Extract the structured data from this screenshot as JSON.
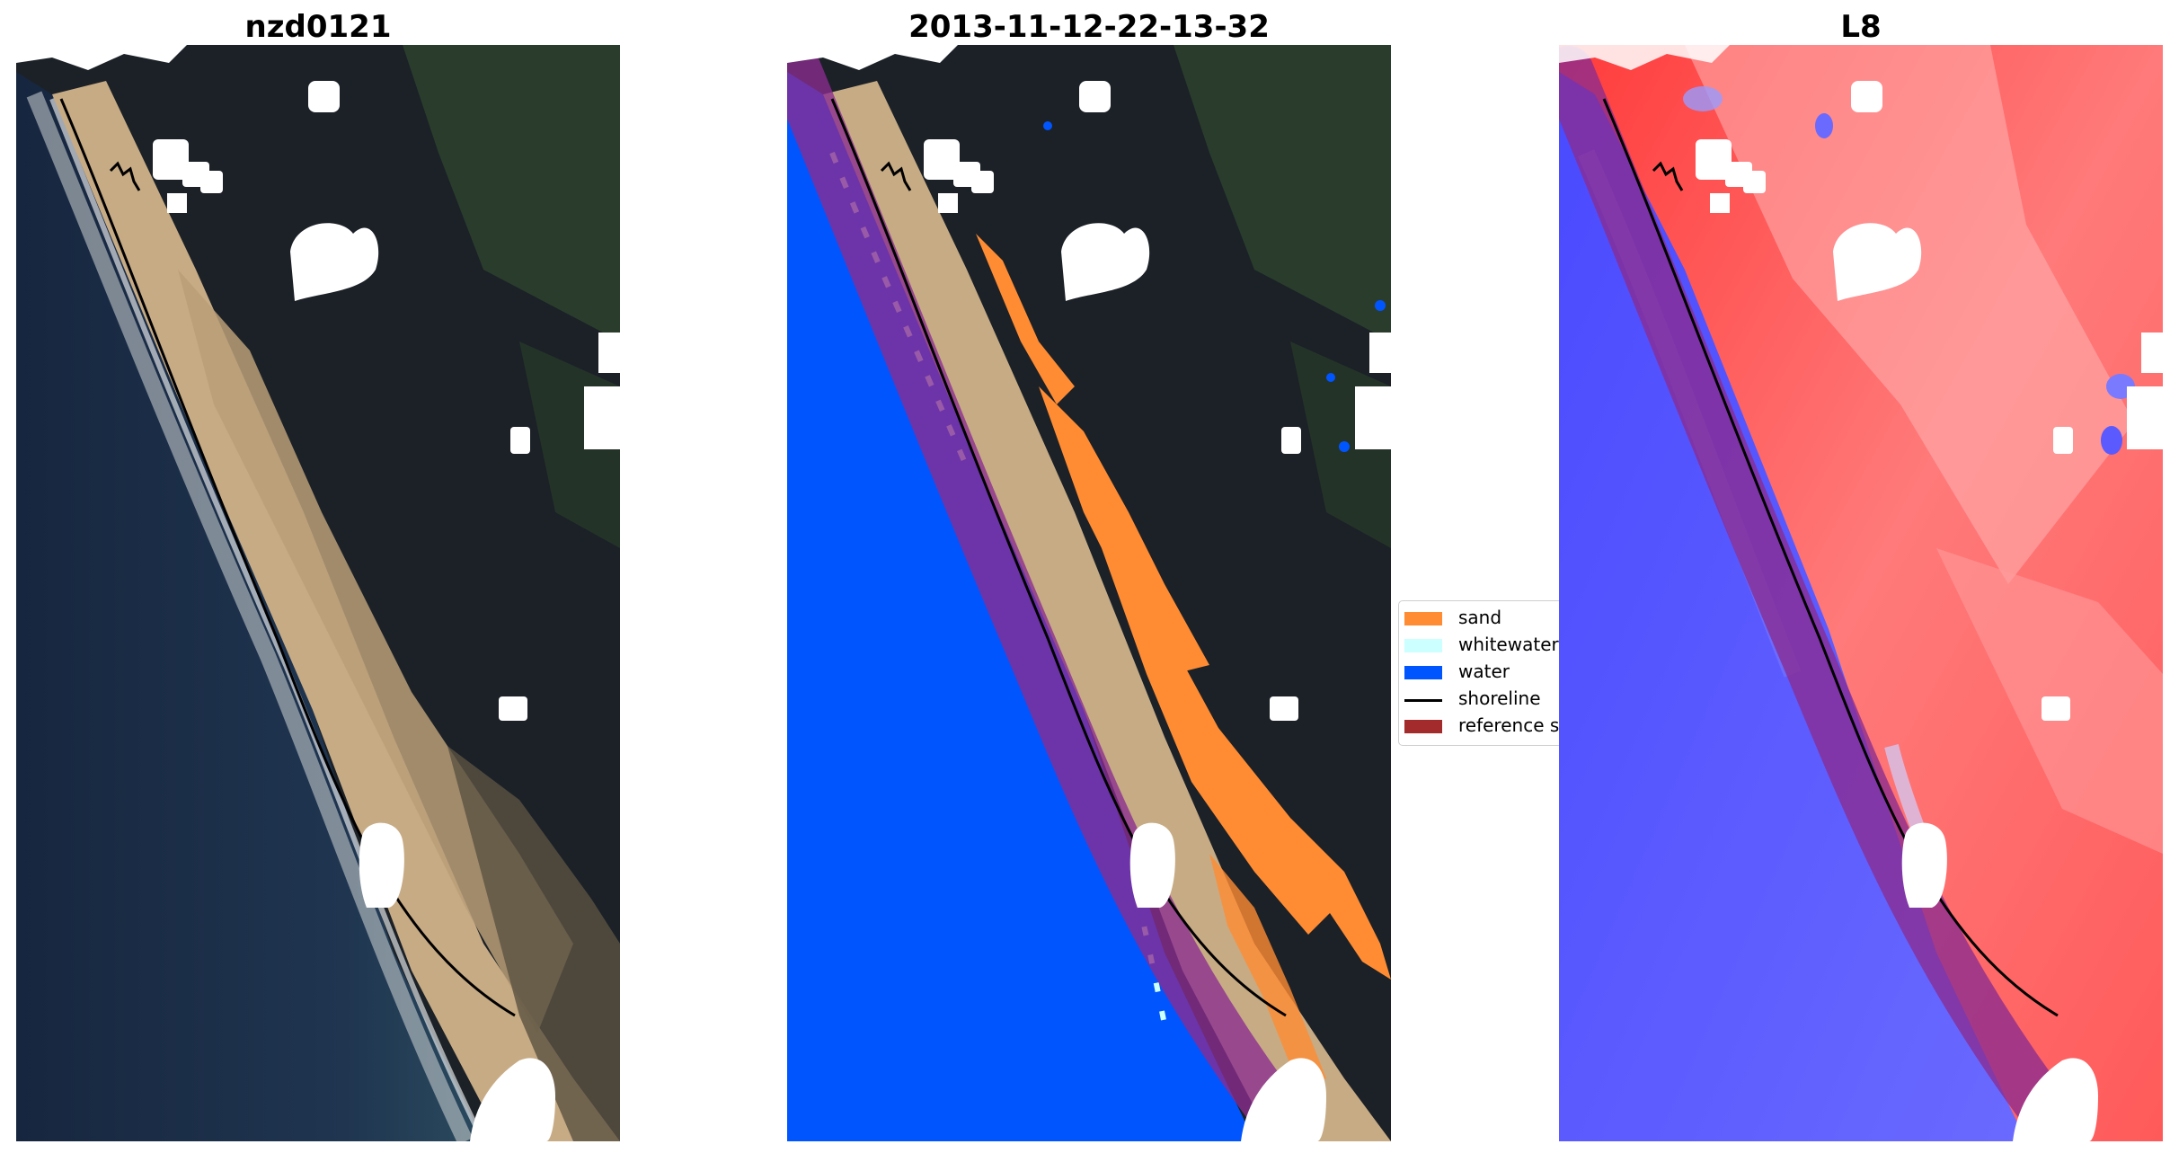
{
  "panels": [
    {
      "title": "nzd0121"
    },
    {
      "title": "2013-11-12-22-13-32"
    },
    {
      "title": "L8"
    }
  ],
  "legend": {
    "items": [
      {
        "label": "sand",
        "color": "#ff8c33"
      },
      {
        "label": "whitewater",
        "color": "#ccffff"
      },
      {
        "label": "water",
        "color": "#0055ff"
      },
      {
        "label": "shoreline",
        "color": "#000000"
      },
      {
        "label": "reference s",
        "color": "#a32b2b"
      }
    ]
  },
  "colors": {
    "ocean_rgb": "#1d2d47",
    "forest_rgb": "#1c2228",
    "beach_sand": "#c9ad88",
    "class_water": "#0055ff",
    "class_sand": "#ff8c33",
    "class_whitewater": "#ccffff",
    "buffer_purple": "#8a2b8f",
    "index_water": "#3535ff",
    "index_land": "#ff4a4a",
    "cloud_mask": "#ffffff"
  }
}
